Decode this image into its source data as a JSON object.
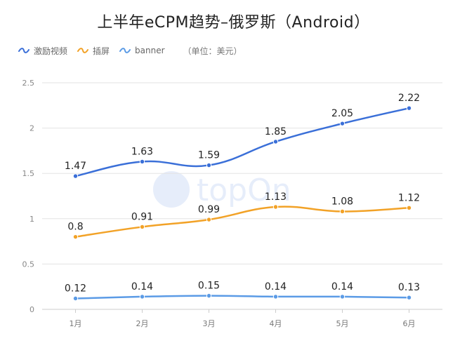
{
  "title": "上半年eCPM趋势–俄罗斯（Android）",
  "legend_unit": "（单位：美元）",
  "watermark_text": "topOn",
  "chart_data": {
    "type": "line",
    "categories": [
      "1月",
      "2月",
      "3月",
      "4月",
      "5月",
      "6月"
    ],
    "series": [
      {
        "name": "激励视频",
        "color": "#3a6fd8",
        "values": [
          1.47,
          1.63,
          1.59,
          1.85,
          2.05,
          2.22
        ]
      },
      {
        "name": "插屏",
        "color": "#f2a227",
        "values": [
          0.8,
          0.91,
          0.99,
          1.13,
          1.08,
          1.12
        ]
      },
      {
        "name": "banner",
        "color": "#5b9be6",
        "values": [
          0.12,
          0.14,
          0.15,
          0.14,
          0.14,
          0.13
        ]
      }
    ],
    "yticks": [
      0,
      0.5,
      1,
      1.5,
      2,
      2.5
    ],
    "ytick_labels": [
      "0",
      "0.5",
      "1",
      "1.5",
      "2",
      "2.5"
    ],
    "value_labels": [
      [
        "1.47",
        "1.63",
        "1.59",
        "1.85",
        "2.05",
        "2.22"
      ],
      [
        "0.8",
        "0.91",
        "0.99",
        "1.13",
        "1.08",
        "1.12"
      ],
      [
        "0.12",
        "0.14",
        "0.15",
        "0.14",
        "0.14",
        "0.13"
      ]
    ],
    "ylim": [
      0,
      2.5
    ],
    "grid": true,
    "legend_position": "top-left"
  }
}
